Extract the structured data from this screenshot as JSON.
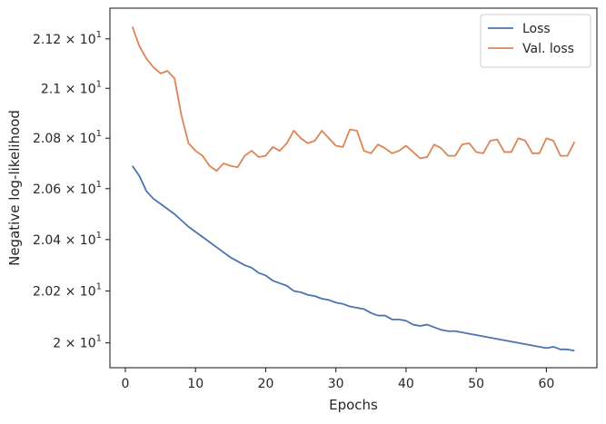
{
  "chart_data": {
    "type": "line",
    "title": "",
    "xlabel": "Epochs",
    "ylabel": "Negative log-likelihood",
    "xlim": [
      -2.2,
      67.2
    ],
    "ylim": [
      19.905,
      21.325
    ],
    "y_scale": "log",
    "grid": false,
    "legend_position": "top-right",
    "x_ticks": [
      0,
      10,
      20,
      30,
      40,
      50,
      60
    ],
    "x_tick_labels": [
      "0",
      "10",
      "20",
      "30",
      "40",
      "50",
      "60"
    ],
    "y_ticks": [
      {
        "value": 20.0,
        "mantissa": "2",
        "base": "10",
        "exp": "1"
      },
      {
        "value": 20.2,
        "mantissa": "2.02",
        "base": "10",
        "exp": "1"
      },
      {
        "value": 20.4,
        "mantissa": "2.04",
        "base": "10",
        "exp": "1"
      },
      {
        "value": 20.6,
        "mantissa": "2.06",
        "base": "10",
        "exp": "1"
      },
      {
        "value": 20.8,
        "mantissa": "2.08",
        "base": "10",
        "exp": "1"
      },
      {
        "value": 21.0,
        "mantissa": "2.1",
        "base": "10",
        "exp": "1"
      },
      {
        "value": 21.2,
        "mantissa": "2.12",
        "base": "10",
        "exp": "1"
      }
    ],
    "x": [
      1,
      2,
      3,
      4,
      5,
      6,
      7,
      8,
      9,
      10,
      11,
      12,
      13,
      14,
      15,
      16,
      17,
      18,
      19,
      20,
      21,
      22,
      23,
      24,
      25,
      26,
      27,
      28,
      29,
      30,
      31,
      32,
      33,
      34,
      35,
      36,
      37,
      38,
      39,
      40,
      41,
      42,
      43,
      44,
      45,
      46,
      47,
      48,
      49,
      50,
      51,
      52,
      53,
      54,
      55,
      56,
      57,
      58,
      59,
      60,
      61,
      62,
      63,
      64
    ],
    "series": [
      {
        "name": "Loss",
        "color": "#4c72b0",
        "values": [
          20.69,
          20.65,
          20.59,
          20.56,
          20.54,
          20.52,
          20.5,
          20.475,
          20.45,
          20.43,
          20.41,
          20.39,
          20.37,
          20.35,
          20.33,
          20.315,
          20.3,
          20.29,
          20.27,
          20.26,
          20.24,
          20.23,
          20.22,
          20.2,
          20.195,
          20.185,
          20.18,
          20.17,
          20.165,
          20.155,
          20.15,
          20.14,
          20.135,
          20.13,
          20.115,
          20.105,
          20.105,
          20.09,
          20.09,
          20.085,
          20.07,
          20.065,
          20.07,
          20.06,
          20.05,
          20.045,
          20.045,
          20.04,
          20.035,
          20.03,
          20.025,
          20.02,
          20.015,
          20.01,
          20.005,
          20.0,
          19.995,
          19.99,
          19.985,
          19.98,
          19.985,
          19.975,
          19.975,
          19.97
        ]
      },
      {
        "name": "Val. loss",
        "color": "#dd8452",
        "values": [
          21.25,
          21.17,
          21.12,
          21.085,
          21.06,
          21.07,
          21.04,
          20.89,
          20.78,
          20.75,
          20.73,
          20.69,
          20.67,
          20.7,
          20.69,
          20.685,
          20.73,
          20.75,
          20.725,
          20.73,
          20.765,
          20.75,
          20.78,
          20.83,
          20.8,
          20.78,
          20.79,
          20.83,
          20.8,
          20.77,
          20.765,
          20.835,
          20.83,
          20.75,
          20.74,
          20.775,
          20.76,
          20.74,
          20.75,
          20.77,
          20.745,
          20.72,
          20.725,
          20.775,
          20.76,
          20.73,
          20.73,
          20.775,
          20.78,
          20.745,
          20.74,
          20.79,
          20.795,
          20.745,
          20.745,
          20.8,
          20.79,
          20.74,
          20.74,
          20.8,
          20.79,
          20.73,
          20.73,
          20.785
        ]
      }
    ]
  }
}
